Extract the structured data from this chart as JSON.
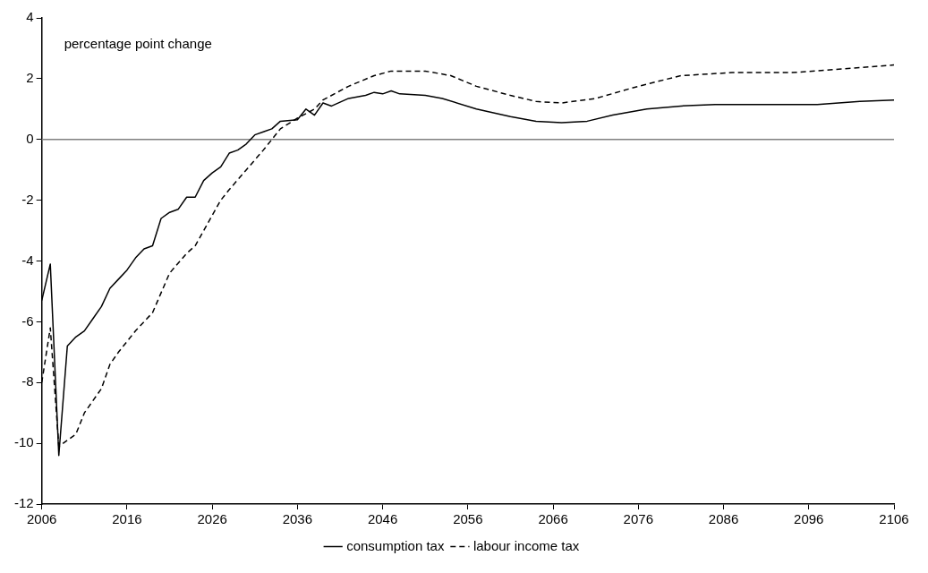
{
  "chart_data": {
    "type": "line",
    "ylabel": "percentage point change",
    "xlim": [
      2006,
      2106
    ],
    "xticks": [
      2006,
      2016,
      2026,
      2036,
      2046,
      2056,
      2066,
      2076,
      2086,
      2096,
      2106
    ],
    "ylim": [
      -12,
      4
    ],
    "yticks": [
      -12,
      -10,
      -8,
      -6,
      -4,
      -2,
      0,
      2,
      4
    ],
    "grid": false,
    "legend": "bottom",
    "marker": "none",
    "ref_lines": [
      {
        "axis": "y",
        "value": 0,
        "color": "#808080"
      }
    ],
    "series": [
      {
        "name": "consumption tax",
        "color": "#000000",
        "line_style": "solid",
        "x": [
          2006,
          2007,
          2008,
          2009,
          2010,
          2011,
          2012,
          2013,
          2014,
          2015,
          2016,
          2017,
          2018,
          2019,
          2020,
          2021,
          2022,
          2023,
          2024,
          2025,
          2026,
          2027,
          2028,
          2029,
          2030,
          2031,
          2032,
          2033,
          2034,
          2036,
          2037,
          2038,
          2039,
          2040,
          2042,
          2044,
          2045,
          2046,
          2047,
          2048,
          2051,
          2053,
          2057,
          2061,
          2064,
          2067,
          2070,
          2073,
          2077,
          2081,
          2085,
          2092,
          2097,
          2102,
          2106
        ],
        "values": [
          -5.3,
          -4.1,
          -10.4,
          -6.8,
          -6.5,
          -6.3,
          -5.9,
          -5.5,
          -4.9,
          -4.6,
          -4.3,
          -3.9,
          -3.6,
          -3.5,
          -2.6,
          -2.4,
          -2.3,
          -1.9,
          -1.9,
          -1.35,
          -1.1,
          -0.9,
          -0.45,
          -0.35,
          -0.15,
          0.15,
          0.25,
          0.35,
          0.6,
          0.65,
          1.0,
          0.8,
          1.2,
          1.1,
          1.35,
          1.45,
          1.55,
          1.5,
          1.6,
          1.5,
          1.45,
          1.35,
          1.0,
          0.75,
          0.6,
          0.55,
          0.6,
          0.8,
          1.0,
          1.1,
          1.15,
          1.15,
          1.15,
          1.25,
          1.3
        ]
      },
      {
        "name": "labour income tax",
        "color": "#000000",
        "line_style": "dashed",
        "x": [
          2006,
          2007,
          2008,
          2009,
          2010,
          2011,
          2013,
          2014,
          2015,
          2017,
          2019,
          2021,
          2023,
          2024,
          2025,
          2027,
          2028,
          2030,
          2032,
          2033,
          2034,
          2036,
          2038,
          2039,
          2042,
          2045,
          2047,
          2051,
          2054,
          2057,
          2061,
          2064,
          2067,
          2071,
          2076,
          2081,
          2087,
          2094,
          2099,
          2106
        ],
        "values": [
          -8.0,
          -6.2,
          -10.1,
          -9.9,
          -9.7,
          -9.0,
          -8.2,
          -7.4,
          -7.0,
          -6.3,
          -5.7,
          -4.4,
          -3.75,
          -3.5,
          -3.0,
          -2.0,
          -1.65,
          -1.0,
          -0.35,
          0.0,
          0.35,
          0.7,
          1.0,
          1.3,
          1.75,
          2.1,
          2.25,
          2.25,
          2.1,
          1.75,
          1.45,
          1.25,
          1.2,
          1.35,
          1.75,
          2.1,
          2.2,
          2.2,
          2.3,
          2.45
        ]
      }
    ]
  }
}
